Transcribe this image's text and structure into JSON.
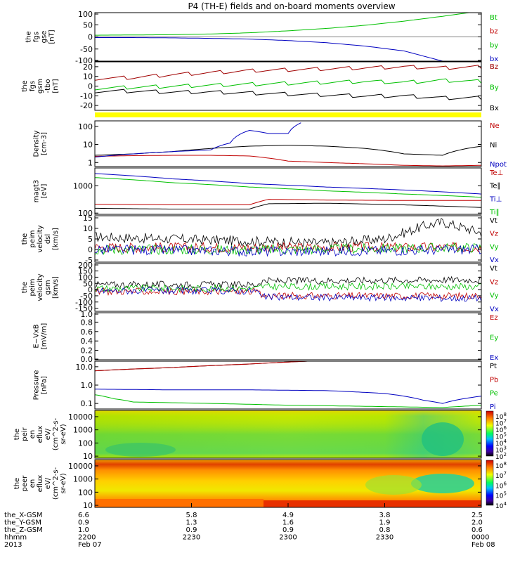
{
  "title": "P4 (TH-E) fields and on-board moments overview",
  "chart_data": [
    {
      "type": "line",
      "panel": "fgs_gse",
      "ylabel_lines": [
        "the",
        "fgs",
        "gse",
        "[nT]"
      ],
      "yticks": [
        "100",
        "50",
        "0",
        "-50",
        "-100"
      ],
      "ylim": [
        -100,
        100
      ],
      "series": [
        {
          "name": "Bt",
          "color": "#00c000",
          "x": [
            0,
            0.1,
            0.2,
            0.3,
            0.4,
            0.5,
            0.6,
            0.7,
            0.8,
            0.9,
            1.0
          ],
          "y": [
            7,
            8,
            9,
            12,
            17,
            25,
            35,
            48,
            65,
            85,
            107
          ]
        },
        {
          "name": "bz",
          "color": "#c00000",
          "x": [],
          "y": []
        },
        {
          "name": "by",
          "color": "#00c000",
          "x": [],
          "y": []
        },
        {
          "name": "bx",
          "color": "#0000c0",
          "x": [
            0,
            0.1,
            0.2,
            0.3,
            0.4,
            0.5,
            0.6,
            0.7,
            0.8,
            0.9
          ],
          "y": [
            -3,
            -3,
            -4,
            -6,
            -9,
            -15,
            -24,
            -38,
            -58,
            -100
          ]
        }
      ]
    },
    {
      "type": "line",
      "panel": "fgs_gsm",
      "ylabel_lines": [
        "the",
        "fgs",
        "gsm",
        "-tbo",
        "[nT]"
      ],
      "yticks": [
        "20",
        "10",
        "0",
        "-10",
        "-20"
      ],
      "ylim": [
        -25,
        25
      ],
      "series": [
        {
          "name": "Bz",
          "color": "#a00000",
          "x": [
            0,
            0.1,
            0.2,
            0.3,
            0.4,
            0.5,
            0.6,
            0.7,
            0.8,
            0.9,
            1.0
          ],
          "y": [
            8,
            9,
            12,
            14,
            16,
            17,
            18,
            19,
            20,
            19,
            20
          ]
        },
        {
          "name": "By",
          "color": "#00c000",
          "x": [
            0,
            0.1,
            0.2,
            0.3,
            0.4,
            0.5,
            0.6,
            0.7,
            0.8,
            0.9,
            1.0
          ],
          "y": [
            -2,
            -1,
            0,
            1,
            2,
            3,
            4,
            5,
            4,
            6,
            5
          ]
        },
        {
          "name": "Bx",
          "color": "#000000",
          "x": [
            0,
            0.1,
            0.2,
            0.3,
            0.4,
            0.5,
            0.6,
            0.7,
            0.8,
            0.9,
            1.0
          ],
          "y": [
            -5,
            -5,
            -6,
            -6,
            -7,
            -8,
            -9,
            -10,
            -10,
            -12,
            -12
          ]
        }
      ]
    },
    {
      "type": "line",
      "panel": "density",
      "ylabel_lines": [
        "Density",
        "[cm-3]"
      ],
      "yticks": [
        "100",
        "10",
        "1"
      ],
      "ylog": true,
      "ylim": [
        0.6,
        200
      ],
      "series": [
        {
          "name": "Ne",
          "color": "#c00000",
          "x": [
            0,
            0.1,
            0.2,
            0.3,
            0.4,
            0.5,
            0.6,
            0.7,
            0.8,
            0.9,
            1.0
          ],
          "y": [
            2.2,
            2.4,
            2.5,
            2.5,
            2.3,
            1.2,
            1.0,
            0.85,
            0.7,
            0.65,
            0.7
          ]
        },
        {
          "name": "Ni",
          "color": "#000000",
          "x": [
            0,
            0.1,
            0.2,
            0.3,
            0.4,
            0.5,
            0.6,
            0.7,
            0.8,
            0.9,
            1.0
          ],
          "y": [
            2.5,
            3,
            4,
            6,
            8,
            9,
            8,
            6,
            3,
            2.5,
            8
          ]
        },
        {
          "name": "Npot",
          "color": "#0000c0",
          "x": [
            0,
            0.1,
            0.2,
            0.3,
            0.35,
            0.4,
            0.45,
            0.5,
            0.54
          ],
          "y": [
            2,
            3,
            4,
            5,
            12,
            60,
            40,
            40,
            180
          ]
        }
      ]
    },
    {
      "type": "line",
      "panel": "mom_temperature",
      "ylabel_lines": [
        "magt3",
        "[eV]"
      ],
      "yticks": [
        "1000",
        "100"
      ],
      "ylog": true,
      "ylim": [
        90,
        4500
      ],
      "series": [
        {
          "name": "Te⊥",
          "color": "#c00000",
          "x": [
            0,
            0.2,
            0.4,
            0.45,
            0.6,
            0.8,
            1.0
          ],
          "y": [
            210,
            200,
            200,
            320,
            300,
            290,
            290
          ]
        },
        {
          "name": "Te∥",
          "color": "#000000",
          "x": [
            0,
            0.2,
            0.4,
            0.45,
            0.6,
            0.8,
            1.0
          ],
          "y": [
            150,
            140,
            140,
            220,
            230,
            200,
            160
          ]
        },
        {
          "name": "Ti⊥",
          "color": "#0000c0",
          "x": [
            0,
            0.2,
            0.4,
            0.6,
            0.8,
            1.0
          ],
          "y": [
            2800,
            1800,
            1200,
            900,
            700,
            500
          ]
        },
        {
          "name": "Ti∥",
          "color": "#00c000",
          "x": [
            0,
            0.2,
            0.4,
            0.6,
            0.8,
            1.0
          ],
          "y": [
            2000,
            1300,
            900,
            650,
            500,
            380
          ]
        }
      ]
    },
    {
      "type": "line",
      "panel": "peim_velocity_dsl",
      "ylabel_lines": [
        "the",
        "peim",
        "velocity",
        "dsl",
        "[km/s]"
      ],
      "yticks": [
        "15",
        "10",
        "5",
        "0",
        "-5"
      ],
      "ylim": [
        -6,
        16
      ],
      "series": [
        {
          "name": "Vt",
          "color": "#000000",
          "x": [
            0,
            0.2,
            0.4,
            0.6,
            0.75,
            0.85,
            0.9,
            1.0
          ],
          "y": [
            6,
            5,
            4,
            3,
            5,
            11,
            13,
            8
          ]
        },
        {
          "name": "Vz",
          "color": "#c00000",
          "x": [
            0,
            0.5,
            1.0
          ],
          "y": [
            1,
            1,
            1
          ]
        },
        {
          "name": "Vy",
          "color": "#00c000",
          "x": [
            0,
            0.5,
            1.0
          ],
          "y": [
            0,
            0,
            1
          ]
        },
        {
          "name": "Vx",
          "color": "#0000c0",
          "x": [
            0,
            0.5,
            1.0
          ],
          "y": [
            0,
            -1,
            0
          ]
        }
      ]
    },
    {
      "type": "line",
      "panel": "peim_velocity_gsm",
      "ylabel_lines": [
        "the",
        "peim",
        "velocity",
        "gsm",
        "[km/s]"
      ],
      "yticks": [
        "200",
        "150",
        "100",
        "50",
        "0",
        "-50",
        "-100",
        "-150"
      ],
      "ylim": [
        -175,
        210
      ],
      "series": [
        {
          "name": "Vt",
          "color": "#000000",
          "x": [
            0,
            0.42,
            0.43,
            1.0
          ],
          "y": [
            40,
            40,
            70,
            80
          ]
        },
        {
          "name": "Vz",
          "color": "#c00000",
          "x": [
            0,
            0.42,
            0.43,
            1.0
          ],
          "y": [
            -15,
            -15,
            -50,
            -50
          ]
        },
        {
          "name": "Vy",
          "color": "#00c000",
          "x": [
            0,
            0.42,
            0.43,
            1.0
          ],
          "y": [
            10,
            10,
            25,
            25
          ]
        },
        {
          "name": "Vx",
          "color": "#0000c0",
          "x": [
            0,
            0.42,
            0.43,
            1.0
          ],
          "y": [
            -10,
            -10,
            -60,
            -70
          ]
        }
      ]
    },
    {
      "type": "line",
      "panel": "e_vxb",
      "ylabel_lines": [
        "E−VxB",
        "[mV/m]"
      ],
      "yticks": [
        "1.0",
        "0.8",
        "0.6",
        "0.4",
        "0.2",
        "0.0"
      ],
      "ylim": [
        0,
        1
      ],
      "series": [
        {
          "name": "Ez",
          "color": "#c00000",
          "x": [],
          "y": []
        },
        {
          "name": "Ey",
          "color": "#00c000",
          "x": [],
          "y": []
        },
        {
          "name": "Ex",
          "color": "#0000c0",
          "x": [],
          "y": []
        }
      ]
    },
    {
      "type": "line",
      "panel": "pressure",
      "ylabel_lines": [
        "Pressure",
        "[nPa]"
      ],
      "yticks": [
        "10.0",
        "1.0",
        "0.1"
      ],
      "ylog": true,
      "ylim": [
        0.05,
        20
      ],
      "series": [
        {
          "name": "Pt",
          "color": "#000000",
          "x": [
            0,
            0.2,
            0.4,
            0.55
          ],
          "y": [
            6,
            9,
            14,
            20
          ]
        },
        {
          "name": "Pb",
          "color": "#c00000",
          "x": [
            0,
            0.2,
            0.4,
            0.55
          ],
          "y": [
            6,
            9,
            14,
            20
          ]
        },
        {
          "name": "Pe",
          "color": "#00c000",
          "x": [
            0,
            0.05,
            0.1,
            0.3,
            0.5,
            0.7,
            0.9,
            1.0
          ],
          "y": [
            0.3,
            0.18,
            0.12,
            0.1,
            0.08,
            0.07,
            0.06,
            0.08
          ]
        },
        {
          "name": "Pi",
          "color": "#0000c0",
          "x": [
            0,
            0.2,
            0.4,
            0.6,
            0.75,
            0.85,
            0.9,
            1.0
          ],
          "y": [
            0.6,
            0.55,
            0.55,
            0.5,
            0.35,
            0.15,
            0.1,
            0.25
          ]
        }
      ]
    },
    {
      "type": "heatmap",
      "panel": "peir_en_eflux",
      "ylabel_lines": [
        "the",
        "peir",
        "en",
        "eflux",
        "eV/",
        "(cm^2-s-",
        "sr-eV)"
      ],
      "yticks": [
        "10000",
        "1000",
        "100",
        "10"
      ],
      "ylog": true,
      "ylim": [
        7,
        30000
      ],
      "colorbar_ticks": [
        "10^8",
        "10^7",
        "10^6",
        "10^5",
        "10^4",
        "10^3",
        "10^2"
      ]
    },
    {
      "type": "heatmap",
      "panel": "peer_en_eflux",
      "ylabel_lines": [
        "the",
        "peer",
        "en",
        "eflux",
        "eV/",
        "(cm^2-s-",
        "sr-eV)"
      ],
      "yticks": [
        "10000",
        "1000",
        "100",
        "10"
      ],
      "ylog": true,
      "ylim": [
        7,
        30000
      ],
      "colorbar_ticks": [
        "10^8",
        "10^7",
        "10^6",
        "10^5",
        "10^4"
      ]
    }
  ],
  "xaxis": {
    "rows": [
      {
        "label": "the_X-GSM",
        "values": [
          "6.6",
          "5.8",
          "4.9",
          "3.8",
          "2.5"
        ]
      },
      {
        "label": "the_Y-GSM",
        "values": [
          "0.9",
          "1.3",
          "1.6",
          "1.9",
          "2.0"
        ]
      },
      {
        "label": "the_Z-GSM",
        "values": [
          "1.0",
          "0.9",
          "0.9",
          "0.8",
          "0.6"
        ]
      },
      {
        "label": "hhmm",
        "values": [
          "2200",
          "2230",
          "2300",
          "2330",
          "0000"
        ]
      },
      {
        "label": "2013",
        "values": [
          "Feb 07",
          "",
          "",
          "",
          "Feb 08"
        ]
      }
    ]
  }
}
